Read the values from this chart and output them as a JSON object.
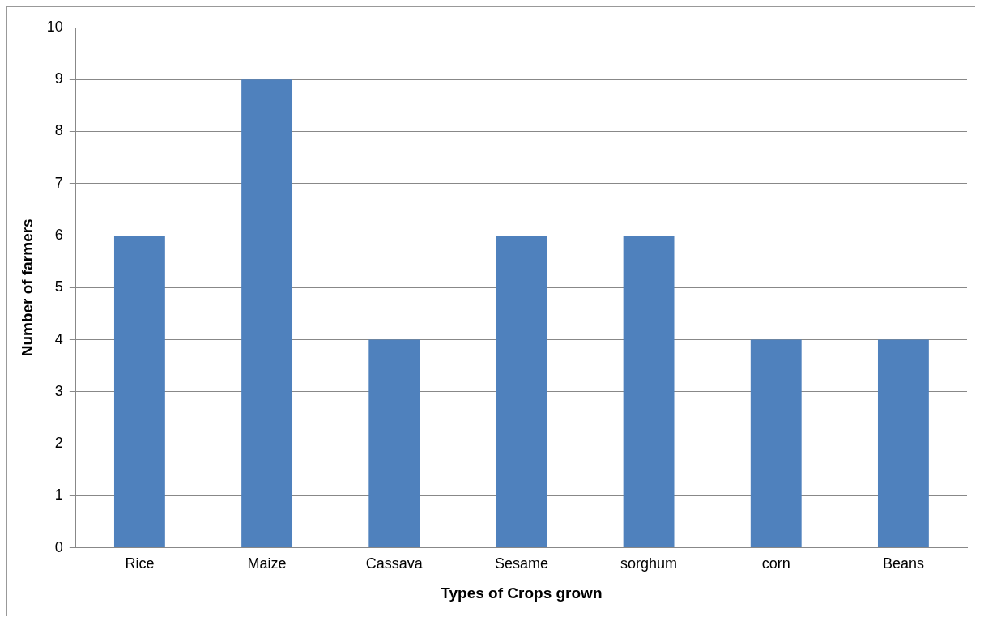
{
  "chart_data": {
    "type": "bar",
    "xlabel": "Types of Crops grown",
    "ylabel": "Number of farmers",
    "categories": [
      "Rice",
      "Maize",
      "Cassava",
      "Sesame",
      "sorghum",
      "corn",
      "Beans"
    ],
    "series": [
      {
        "color": "#4f81bd",
        "values": [
          6,
          9,
          4,
          6,
          6,
          4,
          4
        ]
      }
    ],
    "ylim": [
      0,
      10
    ],
    "yticks": [
      0,
      1,
      2,
      3,
      4,
      5,
      6,
      7,
      8,
      9,
      10
    ],
    "grid": "y",
    "legend": false
  }
}
